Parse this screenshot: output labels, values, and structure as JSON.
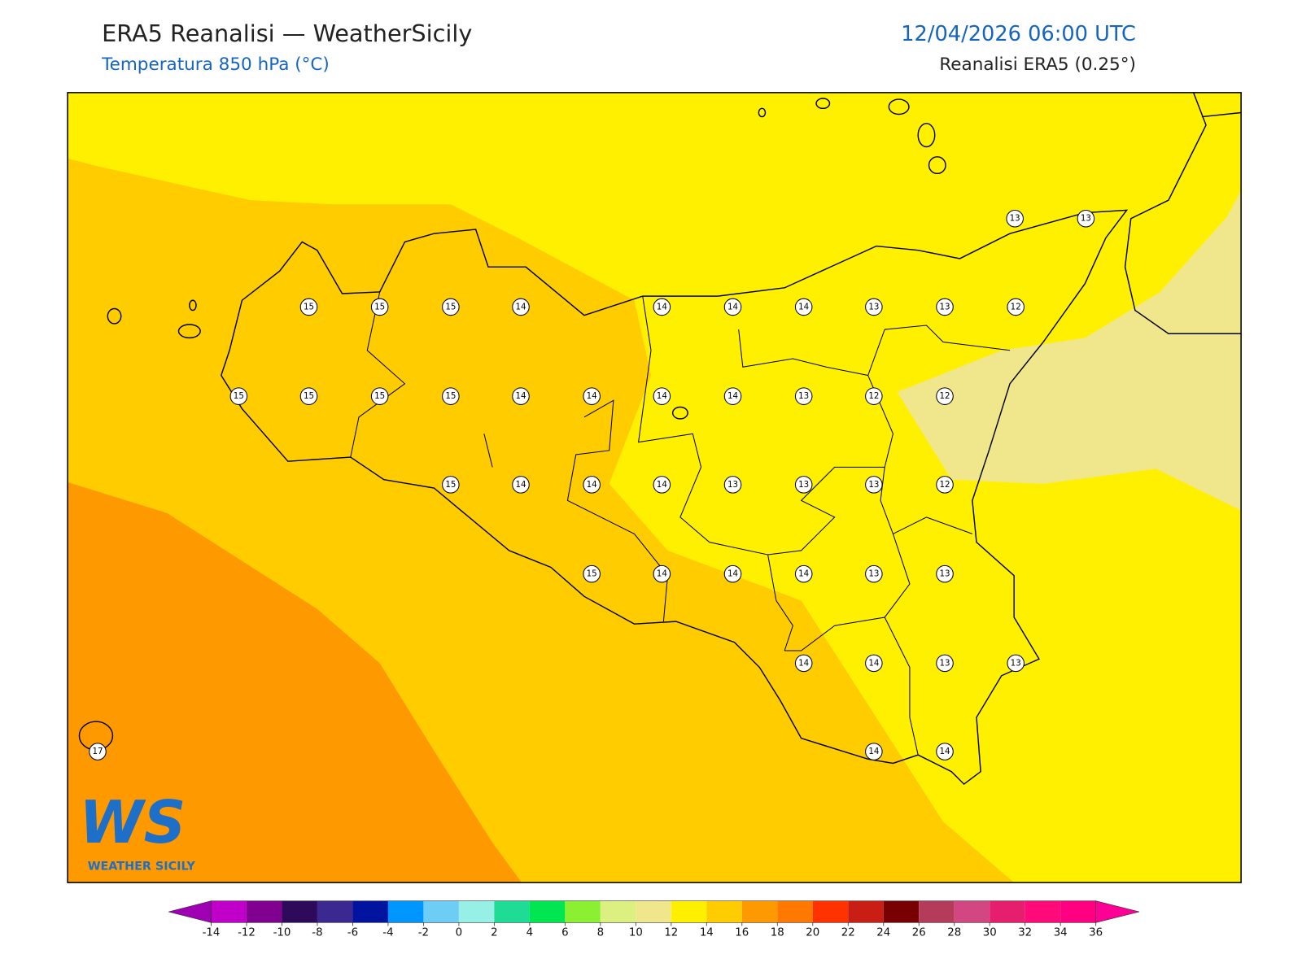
{
  "header": {
    "title": "ERA5 Reanalisi — WeatherSicily",
    "subtitle": "Temperatura 850 hPa (°C)",
    "datetime": "12/04/2026 06:00 UTC",
    "source": "Reanalisi ERA5 (0.25°)"
  },
  "map": {
    "stations": [
      13,
      13,
      15,
      15,
      15,
      14,
      14,
      14,
      14,
      13,
      13,
      12,
      15,
      15,
      15,
      15,
      14,
      14,
      14,
      14,
      13,
      12,
      12,
      15,
      14,
      14,
      14,
      13,
      13,
      13,
      12,
      15,
      14,
      14,
      14,
      13,
      13,
      14,
      14,
      13,
      13,
      17,
      14,
      14
    ]
  },
  "logo": {
    "mark": "WS",
    "text": "WEATHER SICILY"
  },
  "colorbar": {
    "ticks": [
      -14,
      -12,
      -10,
      -8,
      -6,
      -4,
      -2,
      0,
      2,
      4,
      6,
      8,
      10,
      12,
      14,
      16,
      18,
      20,
      22,
      24,
      26,
      28,
      30,
      32,
      34,
      36
    ],
    "colors": [
      "#c000c8",
      "#800090",
      "#2d0a5a",
      "#3c2891",
      "#0014a0",
      "#0096ff",
      "#6ecdf5",
      "#96f0e6",
      "#1edc96",
      "#00e650",
      "#8cf032",
      "#dcf082",
      "#f0e68c",
      "#fff000",
      "#ffcc00",
      "#ff9900",
      "#ff7800",
      "#ff3200",
      "#c81e14",
      "#780000",
      "#b43c5a",
      "#d24682",
      "#e61e6e",
      "#ff0a78",
      "#ff0080"
    ],
    "under_color": "#a000b4",
    "over_color": "#ff0096"
  }
}
